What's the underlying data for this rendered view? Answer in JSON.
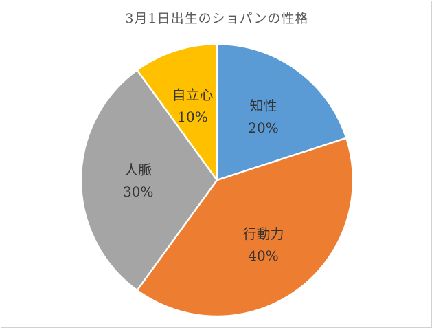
{
  "chart_data": {
    "type": "pie",
    "title": "3月1日出生のショパンの性格",
    "categories": [
      "知性",
      "行動力",
      "人脈",
      "自立心"
    ],
    "values": [
      20,
      40,
      30,
      10
    ],
    "value_labels": [
      "20%",
      "40%",
      "30%",
      "10%"
    ],
    "colors": [
      "#5B9BD5",
      "#ED7D31",
      "#A5A5A5",
      "#FFC000"
    ],
    "start_angle_deg": 0,
    "direction": "clockwise",
    "legend": "none"
  }
}
